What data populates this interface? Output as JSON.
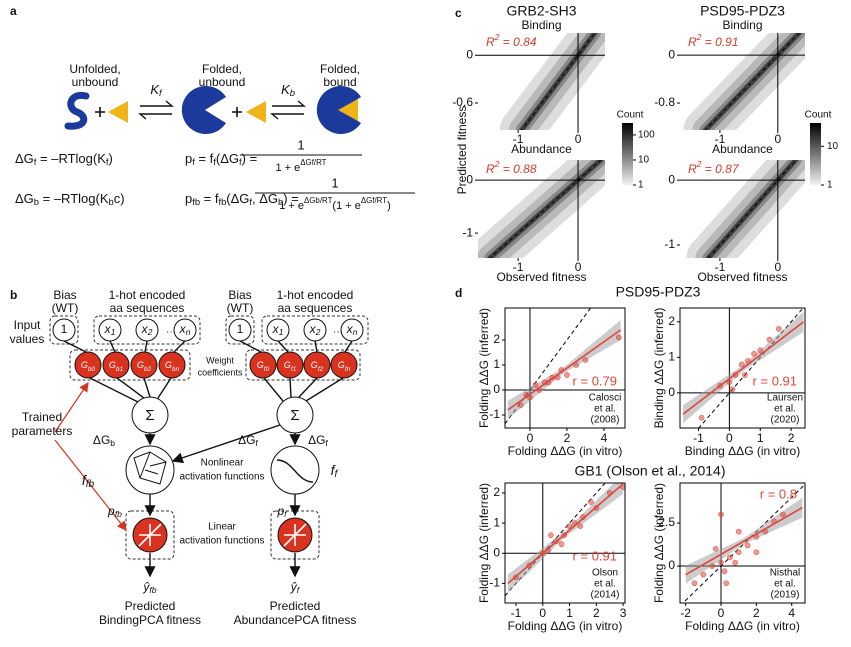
{
  "panel_a": {
    "label": "a",
    "states": [
      [
        "Unfolded,",
        "unbound"
      ],
      [
        "Folded,",
        "unbound"
      ],
      [
        "Folded,",
        "bound"
      ]
    ],
    "constants": [
      [
        "K",
        "f"
      ],
      [
        "K",
        "b"
      ]
    ],
    "equations": [
      [
        "ΔG",
        "f",
        " = –RTlog(K",
        "f",
        ")"
      ],
      [
        "p",
        "f",
        " = f",
        "f",
        "(ΔG",
        "f",
        ")   ="
      ],
      [
        "ΔG",
        "b",
        " = –RTlog(K",
        "b",
        "c)"
      ],
      [
        "p",
        "fb",
        " = f",
        "fb",
        "(ΔG",
        "f",
        ", ΔG",
        "b",
        ") ="
      ]
    ],
    "fractions": [
      {
        "numerator": "1",
        "denominator": [
          "1 + e",
          "ΔGf/RT"
        ]
      },
      {
        "numerator": "1",
        "denominator": [
          "1 + e",
          "ΔGb/RT",
          "(1 + e",
          "ΔGf/RT",
          ")"
        ]
      }
    ]
  },
  "panel_b": {
    "label": "b",
    "bias_labels": [
      [
        "Bias",
        "(WT)"
      ],
      [
        "Bias",
        "(WT)"
      ]
    ],
    "encoded_labels": [
      [
        "1-hot encoded",
        "aa sequences"
      ],
      [
        "1-hot encoded",
        "aa sequences"
      ]
    ],
    "input_label": [
      "Input",
      "values"
    ],
    "weight_label": [
      "Weight",
      "coefficients"
    ],
    "trained_label": [
      "Trained",
      "parameters"
    ],
    "inputs": [
      [
        [
          "1"
        ],
        [
          "x",
          "1"
        ],
        [
          "x",
          "2"
        ],
        [
          "x",
          "n"
        ]
      ],
      [
        [
          "1"
        ],
        [
          "x",
          "1"
        ],
        [
          "x",
          "2"
        ],
        [
          "x",
          "n"
        ]
      ]
    ],
    "weights": [
      [
        [
          "G",
          "b0"
        ],
        [
          "G",
          "b1"
        ],
        [
          "G",
          "b2"
        ],
        [
          "G",
          "bn"
        ]
      ],
      [
        [
          "G",
          "f0"
        ],
        [
          "G",
          "f1"
        ],
        [
          "G",
          "f2"
        ],
        [
          "G",
          "fn"
        ]
      ]
    ],
    "sums": [
      "Σ",
      "Σ"
    ],
    "dG": [
      [
        "ΔG",
        "b"
      ],
      [
        "ΔG",
        "f"
      ],
      [
        "ΔG",
        "f"
      ]
    ],
    "f_labels": [
      [
        "f",
        "fb"
      ],
      [
        "f",
        "f"
      ]
    ],
    "p_labels": [
      [
        "p",
        "fb"
      ],
      [
        "p",
        "f"
      ]
    ],
    "nonlinear_label": [
      "Nonlinear",
      "activation functions"
    ],
    "linear_label": [
      "Linear",
      "activation functions"
    ],
    "outputs": [
      [
        "ŷ",
        "fb"
      ],
      [
        "ŷ",
        "f"
      ]
    ],
    "predicted": [
      [
        "Predicted",
        "BindingPCA fitness"
      ],
      [
        "Predicted",
        "AbundancePCA fitness"
      ]
    ]
  },
  "panel_c": {
    "label": "c",
    "ylabel": "Predicted fitness",
    "plots": [
      {
        "title": "GRB2-SH3",
        "subtitle": "Binding",
        "r2": [
          "R",
          "2",
          " = 0.84"
        ],
        "xlabel": "Abundance",
        "xlim": [
          -1.67,
          0.45
        ],
        "ylim": [
          -0.94,
          0.28
        ],
        "xticks": [
          -1,
          0
        ],
        "yticks": [
          0,
          -0.6
        ]
      },
      {
        "title": "PSD95-PDZ3",
        "subtitle": "Binding",
        "r2": [
          "R",
          "2",
          " = 0.91"
        ],
        "xlabel": "Abundance",
        "xlim": [
          -1.69,
          0.47
        ],
        "ylim": [
          -1.25,
          0.37
        ],
        "xticks": [
          -1,
          0
        ],
        "yticks": [
          0,
          -0.8
        ]
      },
      {
        "r2": [
          "R",
          "2",
          " = 0.88"
        ],
        "xlabel": "Observed fitness",
        "xlim": [
          -1.67,
          0.45
        ],
        "ylim": [
          -1.47,
          0.38
        ],
        "xticks": [
          -1,
          0
        ],
        "yticks": [
          0,
          -1
        ]
      },
      {
        "r2": [
          "R",
          "2",
          " = 0.87"
        ],
        "xlabel": "Observed fitness",
        "xlim": [
          -1.69,
          0.47
        ],
        "ylim": [
          -1.2,
          0.31
        ],
        "xticks": [
          -1,
          0
        ],
        "yticks": [
          0,
          -1
        ]
      }
    ],
    "colorbars": [
      {
        "title": "Count",
        "log": true,
        "lim": [
          1,
          300
        ],
        "ticks": [
          100,
          10,
          1
        ]
      },
      {
        "title": "Count",
        "log": true,
        "lim": [
          1,
          40
        ],
        "ticks": [
          10,
          1
        ]
      }
    ]
  },
  "panel_d": {
    "label": "d",
    "titles": [
      "PSD95-PDZ3",
      "GB1 (Olson et al., 2014)"
    ],
    "point_color": "#e0453a",
    "plots": [
      {
        "r_label": "r = 0.79",
        "r_label_position": "middle-right",
        "citation": [
          "Calosci",
          "et al.",
          "(2008)"
        ],
        "xlabel": "Folding ΔΔG (in vitro)",
        "ylabel": "Folding ΔΔG (inferred)",
        "xlim": [
          -1.35,
          5.14
        ],
        "ylim": [
          -1.52,
          3.28
        ],
        "xticks": [
          0,
          2,
          4
        ],
        "yticks": [
          2,
          1,
          0,
          -1
        ],
        "points": [
          [
            0,
            -0.3
          ],
          [
            0.5,
            0
          ],
          [
            1,
            0.3
          ],
          [
            1.5,
            0.5
          ],
          [
            2,
            0.6
          ],
          [
            -0.5,
            -0.6
          ],
          [
            0.3,
            0.2
          ],
          [
            1.2,
            0.5
          ],
          [
            2.5,
            1
          ],
          [
            0.8,
            0.3
          ],
          [
            -0.2,
            -0.2
          ],
          [
            3,
            1.2
          ],
          [
            4.8,
            2.1
          ],
          [
            1.7,
            0.8
          ]
        ],
        "fit": [
          [
            -1.2,
            -0.8
          ],
          [
            4.9,
            2.4
          ]
        ]
      },
      {
        "r_label": "r = 0.91",
        "r_label_position": "middle-right",
        "citation": [
          "Laursen",
          "et al.",
          "(2020)"
        ],
        "xlabel": "Binding ΔΔG (in vitro)",
        "ylabel": "Binding ΔΔG (inferred)",
        "xlim": [
          -1.6,
          2.45
        ],
        "ylim": [
          -0.99,
          2.39
        ],
        "xticks": [
          -1,
          0,
          1,
          2
        ],
        "yticks": [
          2,
          1,
          0
        ],
        "points": [
          [
            -0.9,
            -0.7
          ],
          [
            -0.3,
            0.2
          ],
          [
            0,
            0.3
          ],
          [
            0.2,
            0.5
          ],
          [
            0.4,
            0.8
          ],
          [
            0.6,
            0.9
          ],
          [
            0.8,
            1.1
          ],
          [
            1,
            1.2
          ],
          [
            1.3,
            1.5
          ],
          [
            1.6,
            1.8
          ],
          [
            0.1,
            0.1
          ],
          [
            0.5,
            0.5
          ]
        ],
        "fit": [
          [
            -1.5,
            -0.6
          ],
          [
            2.4,
            2
          ]
        ]
      },
      {
        "r_label": "r = 0.91",
        "r_label_position": "middle-right",
        "citation": [
          "Olson",
          "et al.",
          "(2014)"
        ],
        "xlabel": "Folding ΔΔG (in vitro)",
        "ylabel": "Folding ΔΔG (inferred)",
        "xlim": [
          -1.41,
          3.07
        ],
        "ylim": [
          -1.65,
          2.33
        ],
        "xticks": [
          -1,
          0,
          1,
          2,
          3
        ],
        "yticks": [
          2,
          1,
          0,
          -1
        ],
        "points": [
          [
            -1,
            -0.8
          ],
          [
            -0.5,
            -0.4
          ],
          [
            0,
            0
          ],
          [
            0.2,
            0.1
          ],
          [
            0.5,
            0.4
          ],
          [
            0.8,
            0.6
          ],
          [
            1,
            0.9
          ],
          [
            1.2,
            1
          ],
          [
            1.5,
            1.2
          ],
          [
            2,
            1.5
          ],
          [
            2.5,
            2
          ],
          [
            3,
            2.2
          ],
          [
            0.3,
            0.6
          ],
          [
            0.7,
            0.3
          ],
          [
            1.8,
            1.7
          ],
          [
            1.4,
            0.9
          ]
        ],
        "fit": [
          [
            -1.3,
            -1
          ],
          [
            3,
            2.3
          ]
        ]
      },
      {
        "r_label": "r = 0.8",
        "r_label_position": "top-right",
        "citation": [
          "Nisthal",
          "et al.",
          "(2019)"
        ],
        "xlabel": "Folding ΔΔG (in vitro)",
        "ylabel": "Folding ΔΔG (inferred)",
        "xlim": [
          -2.32,
          4.75
        ],
        "ylim": [
          -2.15,
          4.83
        ],
        "xticks": [
          -2,
          0,
          2,
          4
        ],
        "yticks": [
          2.5,
          0
        ],
        "points": [
          [
            -1,
            -0.5
          ],
          [
            -0.5,
            0
          ],
          [
            0,
            0.2
          ],
          [
            0.2,
            -0.3
          ],
          [
            0.5,
            0.5
          ],
          [
            1,
            0.8
          ],
          [
            1.5,
            1.2
          ],
          [
            2,
            1.7
          ],
          [
            2.5,
            2
          ],
          [
            3,
            2.6
          ],
          [
            3.5,
            3
          ],
          [
            -0.3,
            1
          ],
          [
            0.3,
            -1
          ],
          [
            1,
            2
          ],
          [
            0,
            3
          ],
          [
            2,
            0.8
          ],
          [
            -1.5,
            -1
          ],
          [
            0.8,
            0.2
          ]
        ],
        "fit": [
          [
            -2,
            -0.5
          ],
          [
            4.6,
            3.4
          ]
        ]
      }
    ]
  }
}
